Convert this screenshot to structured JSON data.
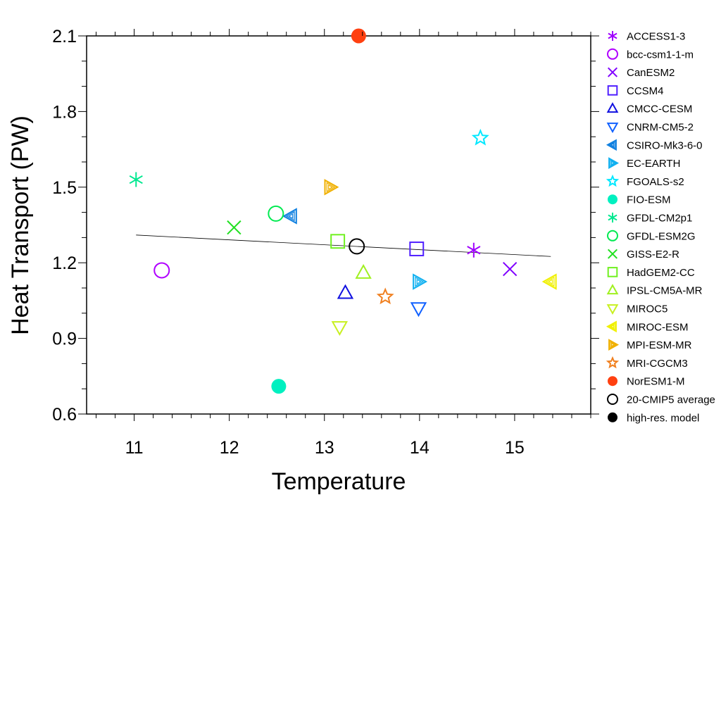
{
  "chart_data": {
    "type": "scatter",
    "title": "",
    "xlabel": "Temperature",
    "ylabel": "Heat Transport (PW)",
    "xlim": [
      10.5,
      15.8
    ],
    "ylim": [
      0.6,
      2.1
    ],
    "xticks": [
      11,
      12,
      13,
      14,
      15
    ],
    "yticks": [
      0.6,
      0.9,
      1.2,
      1.5,
      1.8,
      2.1
    ],
    "ytick_labels": [
      "0.6",
      "0.9",
      "1.2",
      "1.5",
      "1.8",
      "2.1"
    ],
    "grid": false,
    "legend_position": "right",
    "regression_line": {
      "x": [
        11.02,
        15.38
      ],
      "y": [
        1.31,
        1.225
      ],
      "color": "#000000"
    },
    "series": [
      {
        "name": "ACCESS1-3",
        "marker": "asterisk",
        "color": "#a000ff",
        "x": 14.57,
        "y": 1.25
      },
      {
        "name": "bcc-csm1-1-m",
        "marker": "circle",
        "color": "#b000ff",
        "x": 11.29,
        "y": 1.17
      },
      {
        "name": "CanESM2",
        "marker": "x",
        "color": "#8000ff",
        "x": 14.95,
        "y": 1.175
      },
      {
        "name": "CCSM4",
        "marker": "square",
        "color": "#5020ff",
        "x": 13.97,
        "y": 1.255
      },
      {
        "name": "CMCC-CESM",
        "marker": "triangle-up",
        "color": "#1010e0",
        "x": 13.22,
        "y": 1.08
      },
      {
        "name": "CNRM-CM5-2",
        "marker": "triangle-down",
        "color": "#1060ff",
        "x": 13.99,
        "y": 1.02
      },
      {
        "name": "CSIRO-Mk3-6-0",
        "marker": "triangle-left",
        "color": "#1080e0",
        "x": 12.65,
        "y": 1.385
      },
      {
        "name": "EC-EARTH",
        "marker": "triangle-right",
        "color": "#10b0f0",
        "x": 13.99,
        "y": 1.125
      },
      {
        "name": "FGOALS-s2",
        "marker": "star",
        "color": "#00e8ff",
        "x": 14.64,
        "y": 1.695
      },
      {
        "name": "FIO-ESM",
        "marker": "filled-circle",
        "color": "#00f0c0",
        "x": 12.52,
        "y": 0.71
      },
      {
        "name": "GFDL-CM2p1",
        "marker": "asterisk",
        "color": "#00e890",
        "x": 11.02,
        "y": 1.53
      },
      {
        "name": "GFDL-ESM2G",
        "marker": "circle",
        "color": "#00ea50",
        "x": 12.49,
        "y": 1.395
      },
      {
        "name": "GISS-E2-R",
        "marker": "x",
        "color": "#20e020",
        "x": 12.05,
        "y": 1.34
      },
      {
        "name": "HadGEM2-CC",
        "marker": "square",
        "color": "#70f020",
        "x": 13.14,
        "y": 1.285
      },
      {
        "name": "IPSL-CM5A-MR",
        "marker": "triangle-up",
        "color": "#a0f020",
        "x": 13.41,
        "y": 1.16
      },
      {
        "name": "MIROC5",
        "marker": "triangle-down",
        "color": "#c8f020",
        "x": 13.16,
        "y": 0.945
      },
      {
        "name": "MIROC-ESM",
        "marker": "triangle-left",
        "color": "#f0f000",
        "x": 15.38,
        "y": 1.125
      },
      {
        "name": "MPI-ESM-MR",
        "marker": "triangle-right",
        "color": "#f0b000",
        "x": 13.06,
        "y": 1.5
      },
      {
        "name": "MRI-CGCM3",
        "marker": "star",
        "color": "#f08020",
        "x": 13.64,
        "y": 1.065
      },
      {
        "name": "NorESM1-M",
        "marker": "filled-circle",
        "color": "#ff4010",
        "x": 13.36,
        "y": 2.1
      },
      {
        "name": "20-CMIP5 average",
        "marker": "circle",
        "color": "#000000",
        "x": 13.34,
        "y": 1.265
      },
      {
        "name": "high-res. model",
        "marker": "filled-circle",
        "color": "#000000",
        "x": null,
        "y": null
      }
    ]
  }
}
